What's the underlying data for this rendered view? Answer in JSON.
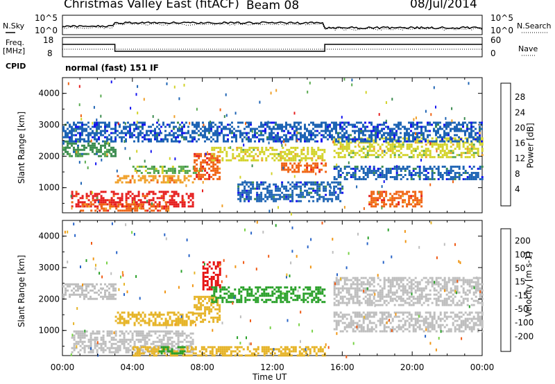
{
  "header": {
    "station": "Christmas Valley East (fitACF)",
    "beam": "Beam 08",
    "date": "08/Jul/2014"
  },
  "top_panels": {
    "nsky_label": "N.Sky",
    "nsearch_label": "N.Search",
    "noise_ticks": [
      "10^5",
      "10^0"
    ],
    "freq_label_line1": "Freq.",
    "freq_label_line2": "[MHz]",
    "freq_ticks": [
      "18",
      "8"
    ],
    "nave_label": "Nave",
    "nave_ticks": [
      "60",
      "0"
    ],
    "cpid_label": "CPID",
    "cpid_value": "normal (fast) 151 IF"
  },
  "colors": {
    "power_scale": [
      "#1414f0",
      "#1e64b4",
      "#3c8c50",
      "#5aaa50",
      "#d2d228",
      "#f0a028",
      "#f06414",
      "#e61e1e"
    ],
    "velocity_scale": [
      "#1e28b4",
      "#2864c8",
      "#28a028",
      "#78d246",
      "#bebebe",
      "#e6b428",
      "#f09614",
      "#f05a14",
      "#e61414"
    ]
  },
  "chart_data": [
    {
      "type": "heatmap",
      "name": "power",
      "ylabel": "Slant Range [km]",
      "xlabel": "Time UT",
      "x_ticks": [
        "00:00",
        "04:00",
        "08:00",
        "12:00",
        "16:00",
        "20:00",
        "00:00"
      ],
      "y_ticks": [
        1000,
        2000,
        3000,
        4000
      ],
      "ylim": [
        200,
        4500
      ],
      "colorbar_label": "Power [dB]",
      "colorbar_ticks": [
        "28",
        "24",
        "20",
        "16",
        "12",
        "8",
        "4"
      ],
      "bands": [
        {
          "t": [
            0.5,
            7.5
          ],
          "r": [
            400,
            900
          ],
          "v": 27
        },
        {
          "t": [
            1.0,
            6.0
          ],
          "r": [
            250,
            500
          ],
          "v": 25
        },
        {
          "t": [
            3.0,
            7.5
          ],
          "r": [
            1200,
            1400
          ],
          "v": 22
        },
        {
          "t": [
            4.0,
            8.0
          ],
          "r": [
            1500,
            1700
          ],
          "v": 14
        },
        {
          "t": [
            7.5,
            9.0
          ],
          "r": [
            1300,
            2100
          ],
          "v": 26
        },
        {
          "t": [
            8.5,
            15.0
          ],
          "r": [
            1900,
            2300
          ],
          "v": 18
        },
        {
          "t": [
            12.5,
            15.0
          ],
          "r": [
            1500,
            1800
          ],
          "v": 24
        },
        {
          "t": [
            0.0,
            3.0
          ],
          "r": [
            2000,
            2500
          ],
          "v": 10
        },
        {
          "t": [
            15.5,
            24.0
          ],
          "r": [
            2000,
            2600
          ],
          "v": 16
        },
        {
          "t": [
            15.5,
            24.0
          ],
          "r": [
            1300,
            1700
          ],
          "v": 6
        },
        {
          "t": [
            17.5,
            20.5
          ],
          "r": [
            400,
            900
          ],
          "v": 24
        },
        {
          "t": [
            10.0,
            16.0
          ],
          "r": [
            600,
            1200
          ],
          "v": 6
        },
        {
          "t": [
            0.0,
            24.0
          ],
          "r": [
            2500,
            3100
          ],
          "v": 4
        }
      ]
    },
    {
      "type": "heatmap",
      "name": "velocity",
      "ylabel": "Slant Range [km]",
      "xlabel": "Time UT",
      "x_ticks": [
        "00:00",
        "04:00",
        "08:00",
        "12:00",
        "16:00",
        "20:00",
        "00:00"
      ],
      "y_ticks": [
        1000,
        2000,
        3000,
        4000
      ],
      "ylim": [
        200,
        4500
      ],
      "colorbar_label": "Velocity [m s-1]",
      "colorbar_ticks": [
        "200",
        "100",
        "50",
        "15",
        "-15",
        "-50",
        "-100",
        "-200"
      ],
      "bands": [
        {
          "t": [
            0.5,
            7.5
          ],
          "r": [
            300,
            1000
          ],
          "v": 0
        },
        {
          "t": [
            3.0,
            7.5
          ],
          "r": [
            1200,
            1600
          ],
          "v": -40
        },
        {
          "t": [
            7.5,
            9.0
          ],
          "r": [
            1300,
            2100
          ],
          "v": -40
        },
        {
          "t": [
            8.0,
            9.0
          ],
          "r": [
            2300,
            3200
          ],
          "v": -220
        },
        {
          "t": [
            8.5,
            15.0
          ],
          "r": [
            1900,
            2400
          ],
          "v": 60
        },
        {
          "t": [
            0.0,
            3.0
          ],
          "r": [
            2000,
            2500
          ],
          "v": 0
        },
        {
          "t": [
            15.5,
            24.0
          ],
          "r": [
            1800,
            2700
          ],
          "v": 0
        },
        {
          "t": [
            15.5,
            24.0
          ],
          "r": [
            1000,
            1600
          ],
          "v": 0
        },
        {
          "t": [
            4.0,
            15.0
          ],
          "r": [
            200,
            500
          ],
          "v": -40
        },
        {
          "t": [
            5.5,
            7.0
          ],
          "r": [
            300,
            500
          ],
          "v": 60
        }
      ]
    }
  ]
}
